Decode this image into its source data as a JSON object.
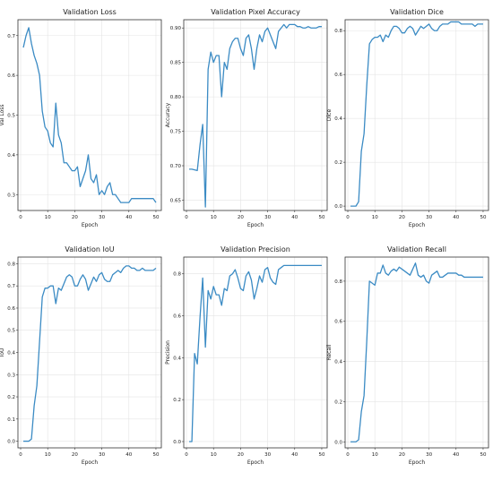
{
  "chart_data": [
    {
      "type": "line",
      "title": "Validation Loss",
      "xlabel": "Epoch",
      "ylabel": "Val Loss",
      "xlim": [
        -1,
        52
      ],
      "ylim": [
        0.26,
        0.74
      ],
      "xticks": [
        0,
        10,
        20,
        30,
        40,
        50
      ],
      "yticks": [
        0.3,
        0.4,
        0.5,
        0.6,
        0.7
      ],
      "ytick_labels": [
        "0.3",
        "0.4",
        "0.5",
        "0.6",
        "0.7"
      ],
      "grid": true,
      "x": [
        1,
        2,
        3,
        4,
        5,
        6,
        7,
        8,
        9,
        10,
        11,
        12,
        13,
        14,
        15,
        16,
        17,
        18,
        19,
        20,
        21,
        22,
        23,
        24,
        25,
        26,
        27,
        28,
        29,
        30,
        31,
        32,
        33,
        34,
        35,
        36,
        37,
        38,
        39,
        40,
        41,
        42,
        43,
        44,
        45,
        46,
        47,
        48,
        49,
        50
      ],
      "values": [
        0.67,
        0.7,
        0.72,
        0.68,
        0.65,
        0.63,
        0.6,
        0.51,
        0.47,
        0.46,
        0.43,
        0.42,
        0.53,
        0.45,
        0.43,
        0.38,
        0.38,
        0.37,
        0.36,
        0.36,
        0.37,
        0.32,
        0.34,
        0.36,
        0.4,
        0.34,
        0.33,
        0.35,
        0.3,
        0.31,
        0.3,
        0.32,
        0.33,
        0.3,
        0.3,
        0.29,
        0.28,
        0.28,
        0.28,
        0.28,
        0.29,
        0.29,
        0.29,
        0.29,
        0.29,
        0.29,
        0.29,
        0.29,
        0.29,
        0.28
      ]
    },
    {
      "type": "line",
      "title": "Validation Pixel Accuracy",
      "xlabel": "Epoch",
      "ylabel": "Accuracy",
      "xlim": [
        -1,
        52
      ],
      "ylim": [
        0.635,
        0.912
      ],
      "xticks": [
        0,
        10,
        20,
        30,
        40,
        50
      ],
      "yticks": [
        0.65,
        0.7,
        0.75,
        0.8,
        0.85,
        0.9
      ],
      "ytick_labels": [
        "0.65",
        "0.70",
        "0.75",
        "0.80",
        "0.85",
        "0.90"
      ],
      "grid": true,
      "x": [
        1,
        2,
        3,
        4,
        5,
        6,
        7,
        8,
        9,
        10,
        11,
        12,
        13,
        14,
        15,
        16,
        17,
        18,
        19,
        20,
        21,
        22,
        23,
        24,
        25,
        26,
        27,
        28,
        29,
        30,
        31,
        32,
        33,
        34,
        35,
        36,
        37,
        38,
        39,
        40,
        41,
        42,
        43,
        44,
        45,
        46,
        47,
        48,
        49,
        50
      ],
      "values": [
        0.695,
        0.695,
        0.694,
        0.693,
        0.73,
        0.76,
        0.64,
        0.84,
        0.865,
        0.85,
        0.86,
        0.86,
        0.8,
        0.85,
        0.84,
        0.87,
        0.88,
        0.885,
        0.885,
        0.87,
        0.86,
        0.885,
        0.89,
        0.87,
        0.84,
        0.87,
        0.89,
        0.88,
        0.895,
        0.9,
        0.89,
        0.88,
        0.87,
        0.895,
        0.9,
        0.905,
        0.9,
        0.905,
        0.905,
        0.905,
        0.902,
        0.902,
        0.9,
        0.9,
        0.902,
        0.9,
        0.9,
        0.9,
        0.902,
        0.902
      ]
    },
    {
      "type": "line",
      "title": "Validation Dice",
      "xlabel": "Epoch",
      "ylabel": "Dice",
      "xlim": [
        -1,
        52
      ],
      "ylim": [
        -0.02,
        0.85
      ],
      "xticks": [
        0,
        10,
        20,
        30,
        40,
        50
      ],
      "yticks": [
        0.0,
        0.2,
        0.4,
        0.6,
        0.8
      ],
      "ytick_labels": [
        "0.0",
        "0.2",
        "0.4",
        "0.6",
        "0.8"
      ],
      "grid": true,
      "x": [
        1,
        2,
        3,
        4,
        5,
        6,
        7,
        8,
        9,
        10,
        11,
        12,
        13,
        14,
        15,
        16,
        17,
        18,
        19,
        20,
        21,
        22,
        23,
        24,
        25,
        26,
        27,
        28,
        29,
        30,
        31,
        32,
        33,
        34,
        35,
        36,
        37,
        38,
        39,
        40,
        41,
        42,
        43,
        44,
        45,
        46,
        47,
        48,
        49,
        50
      ],
      "values": [
        0.0,
        0.0,
        0.0,
        0.02,
        0.25,
        0.33,
        0.55,
        0.74,
        0.76,
        0.77,
        0.77,
        0.78,
        0.75,
        0.78,
        0.77,
        0.8,
        0.82,
        0.82,
        0.81,
        0.79,
        0.79,
        0.81,
        0.82,
        0.81,
        0.78,
        0.8,
        0.82,
        0.81,
        0.82,
        0.83,
        0.81,
        0.8,
        0.8,
        0.82,
        0.83,
        0.83,
        0.83,
        0.84,
        0.84,
        0.84,
        0.84,
        0.83,
        0.83,
        0.83,
        0.83,
        0.83,
        0.82,
        0.83,
        0.83,
        0.83
      ]
    },
    {
      "type": "line",
      "title": "Validation IoU",
      "xlabel": "Epoch",
      "ylabel": "IoU",
      "xlim": [
        -1,
        52
      ],
      "ylim": [
        -0.03,
        0.83
      ],
      "xticks": [
        0,
        10,
        20,
        30,
        40,
        50
      ],
      "yticks": [
        0.0,
        0.1,
        0.2,
        0.3,
        0.4,
        0.5,
        0.6,
        0.7,
        0.8
      ],
      "ytick_labels": [
        "0.0",
        "0.1",
        "0.2",
        "0.3",
        "0.4",
        "0.5",
        "0.6",
        "0.7",
        "0.8"
      ],
      "grid": true,
      "x": [
        1,
        2,
        3,
        4,
        5,
        6,
        7,
        8,
        9,
        10,
        11,
        12,
        13,
        14,
        15,
        16,
        17,
        18,
        19,
        20,
        21,
        22,
        23,
        24,
        25,
        26,
        27,
        28,
        29,
        30,
        31,
        32,
        33,
        34,
        35,
        36,
        37,
        38,
        39,
        40,
        41,
        42,
        43,
        44,
        45,
        46,
        47,
        48,
        49,
        50
      ],
      "values": [
        0.0,
        0.0,
        0.0,
        0.01,
        0.16,
        0.25,
        0.45,
        0.65,
        0.69,
        0.69,
        0.7,
        0.7,
        0.62,
        0.69,
        0.68,
        0.71,
        0.74,
        0.75,
        0.74,
        0.7,
        0.7,
        0.73,
        0.75,
        0.73,
        0.68,
        0.71,
        0.74,
        0.72,
        0.75,
        0.76,
        0.73,
        0.72,
        0.72,
        0.75,
        0.76,
        0.77,
        0.76,
        0.78,
        0.79,
        0.79,
        0.78,
        0.78,
        0.77,
        0.77,
        0.78,
        0.77,
        0.77,
        0.77,
        0.77,
        0.78
      ]
    },
    {
      "type": "line",
      "title": "Validation Precision",
      "xlabel": "Epoch",
      "ylabel": "Precision",
      "xlim": [
        -1,
        52
      ],
      "ylim": [
        -0.03,
        0.88
      ],
      "xticks": [
        0,
        10,
        20,
        30,
        40,
        50
      ],
      "yticks": [
        0.0,
        0.2,
        0.4,
        0.6,
        0.8
      ],
      "ytick_labels": [
        "0.0",
        "0.2",
        "0.4",
        "0.6",
        "0.8"
      ],
      "grid": true,
      "x": [
        1,
        2,
        3,
        4,
        5,
        6,
        7,
        8,
        9,
        10,
        11,
        12,
        13,
        14,
        15,
        16,
        17,
        18,
        19,
        20,
        21,
        22,
        23,
        24,
        25,
        26,
        27,
        28,
        29,
        30,
        31,
        32,
        33,
        34,
        35,
        36,
        37,
        38,
        39,
        40,
        41,
        42,
        43,
        44,
        45,
        46,
        47,
        48,
        49,
        50
      ],
      "values": [
        0.0,
        0.0,
        0.42,
        0.37,
        0.59,
        0.78,
        0.45,
        0.72,
        0.68,
        0.74,
        0.7,
        0.7,
        0.65,
        0.73,
        0.72,
        0.79,
        0.8,
        0.82,
        0.78,
        0.73,
        0.72,
        0.79,
        0.81,
        0.77,
        0.68,
        0.73,
        0.79,
        0.76,
        0.82,
        0.83,
        0.78,
        0.76,
        0.75,
        0.82,
        0.83,
        0.84,
        0.84,
        0.84,
        0.84,
        0.84,
        0.84,
        0.84,
        0.84,
        0.84,
        0.84,
        0.84,
        0.84,
        0.84,
        0.84,
        0.84
      ]
    },
    {
      "type": "line",
      "title": "Validation Recall",
      "xlabel": "Epoch",
      "ylabel": "Recall",
      "xlim": [
        -1,
        52
      ],
      "ylim": [
        -0.03,
        0.92
      ],
      "xticks": [
        0,
        10,
        20,
        30,
        40,
        50
      ],
      "yticks": [
        0.0,
        0.2,
        0.4,
        0.6,
        0.8
      ],
      "ytick_labels": [
        "0.0",
        "0.2",
        "0.4",
        "0.6",
        "0.8"
      ],
      "grid": true,
      "x": [
        1,
        2,
        3,
        4,
        5,
        6,
        7,
        8,
        9,
        10,
        11,
        12,
        13,
        14,
        15,
        16,
        17,
        18,
        19,
        20,
        21,
        22,
        23,
        24,
        25,
        26,
        27,
        28,
        29,
        30,
        31,
        32,
        33,
        34,
        35,
        36,
        37,
        38,
        39,
        40,
        41,
        42,
        43,
        44,
        45,
        46,
        47,
        48,
        49,
        50
      ],
      "values": [
        0.0,
        0.0,
        0.0,
        0.01,
        0.15,
        0.23,
        0.5,
        0.8,
        0.79,
        0.78,
        0.84,
        0.84,
        0.88,
        0.84,
        0.83,
        0.85,
        0.86,
        0.85,
        0.87,
        0.86,
        0.85,
        0.84,
        0.83,
        0.86,
        0.89,
        0.83,
        0.82,
        0.83,
        0.8,
        0.79,
        0.83,
        0.84,
        0.85,
        0.82,
        0.82,
        0.83,
        0.84,
        0.84,
        0.84,
        0.84,
        0.83,
        0.83,
        0.82,
        0.82,
        0.82,
        0.82,
        0.82,
        0.82,
        0.82,
        0.82
      ]
    }
  ],
  "colors": {
    "line": "#3b8bc4",
    "grid": "#e4e4e4",
    "frame": "#333333"
  }
}
